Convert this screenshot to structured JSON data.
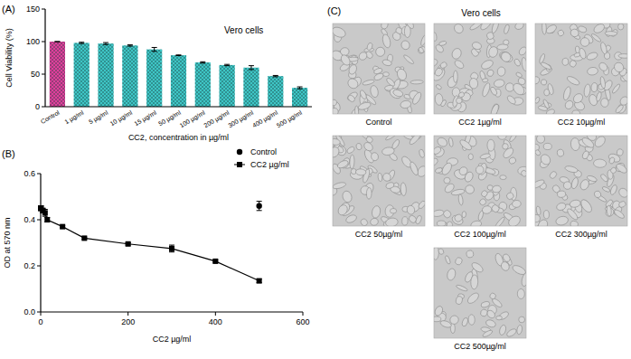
{
  "chart_data": [
    {
      "type": "bar",
      "title": "Vero cells",
      "annotations": [
        "(A)"
      ],
      "y_label": "Cell Viability (%)",
      "x_label": "CC2, concentration in µg/ml",
      "categories": [
        "Control",
        "1 µg/ml",
        "5 µg/ml",
        "10 µg/ml",
        "15 µg/ml",
        "50 µg/ml",
        "100 µg/ml",
        "200 µg/ml",
        "300 µg/ml",
        "400 µg/ml",
        "500 µg/ml"
      ],
      "values": [
        100,
        98,
        97,
        94,
        88,
        79,
        68,
        64,
        60,
        47,
        29
      ],
      "errors": [
        0,
        1,
        1.5,
        1,
        3,
        0.5,
        1,
        1,
        3,
        1,
        1.5
      ],
      "colors": [
        "#e0409c",
        "#3ec6c6",
        "#3ec6c6",
        "#3ec6c6",
        "#3ec6c6",
        "#3ec6c6",
        "#3ec6c6",
        "#3ec6c6",
        "#3ec6c6",
        "#3ec6c6",
        "#3ec6c6"
      ],
      "ylim": [
        0,
        150
      ],
      "yticks": [
        0,
        50,
        100,
        150
      ],
      "grid": false
    },
    {
      "type": "line",
      "annotations": [
        "(B)"
      ],
      "y_label": "OD at 570 nm",
      "x_label": "CC2 µg/ml",
      "x": [
        0,
        1,
        5,
        10,
        15,
        50,
        100,
        200,
        300,
        400,
        500
      ],
      "series": [
        {
          "name": "Control",
          "type": "scatter",
          "marker": "circle",
          "color": "#000000",
          "values": [
            null,
            null,
            null,
            null,
            null,
            null,
            null,
            null,
            null,
            null,
            0.46
          ],
          "errors": [
            null,
            null,
            null,
            null,
            null,
            null,
            null,
            null,
            null,
            null,
            0.02
          ]
        },
        {
          "name": "CC2 µg/ml",
          "type": "line",
          "marker": "square",
          "line_style": "solid",
          "color": "#000000",
          "values": [
            0.45,
            0.45,
            0.44,
            0.43,
            0.4,
            0.37,
            0.32,
            0.295,
            0.275,
            0.22,
            0.135
          ],
          "errors": [
            0.01,
            0.01,
            0.01,
            0.015,
            0.01,
            0.005,
            0.005,
            0.005,
            0.015,
            0.005,
            0.008
          ]
        }
      ],
      "xlim": [
        0,
        600
      ],
      "xticks": [
        0,
        200,
        400,
        600
      ],
      "ylim": [
        0,
        0.6
      ],
      "yticks": [
        {
          "value": 0,
          "label": "0.0"
        },
        0.2,
        0.4,
        0.6
      ],
      "legend": "upper right",
      "grid": false
    }
  ],
  "figure": {
    "panel_label": "(C)",
    "title": "Vero cells",
    "images": [
      {
        "caption": "Control"
      },
      {
        "caption": "CC2  1µg/ml"
      },
      {
        "caption": "CC2 10µg/ml"
      },
      {
        "caption": "CC2 50µg/ml"
      },
      {
        "caption": "CC2 100µg/ml"
      },
      {
        "caption": "CC2 300µg/ml"
      },
      {
        "caption": "CC2 500µg/ml"
      }
    ]
  }
}
